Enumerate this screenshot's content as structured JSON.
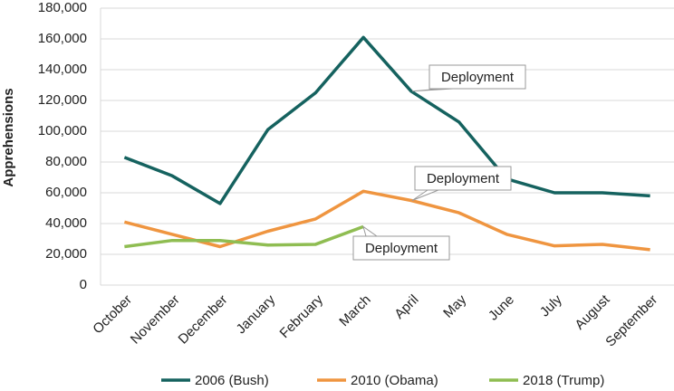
{
  "chart_data": {
    "type": "line",
    "y_label": "Apprehensions",
    "categories": [
      "October",
      "November",
      "December",
      "January",
      "February",
      "March",
      "April",
      "May",
      "June",
      "July",
      "August",
      "September"
    ],
    "series": [
      {
        "name": "2006 (Bush)",
        "color": "#15625f",
        "values": [
          83000,
          71000,
          53000,
          101000,
          125000,
          161000,
          126000,
          106000,
          69000,
          60000,
          60000,
          58000
        ]
      },
      {
        "name": "2010 (Obama)",
        "color": "#ef9540",
        "values": [
          41000,
          33000,
          25000,
          35000,
          43000,
          61000,
          55000,
          47000,
          33000,
          25500,
          26500,
          23000
        ]
      },
      {
        "name": "2018 (Trump)",
        "color": "#8fbd52",
        "values": [
          25000,
          29000,
          29000,
          26000,
          26500,
          38000,
          null,
          null,
          null,
          null,
          null,
          null
        ]
      }
    ],
    "ylim": [
      0,
      180000
    ],
    "yticks": [
      0,
      {
        "value": 20000,
        "label": "20,000"
      },
      {
        "value": 40000,
        "label": "40,000"
      },
      {
        "value": 60000,
        "label": "60,000"
      },
      {
        "value": 80000,
        "label": "80,000"
      },
      {
        "value": 100000,
        "label": "100,000"
      },
      {
        "value": 120000,
        "label": "120,000"
      },
      {
        "value": 140000,
        "label": "140,000"
      },
      {
        "value": 160000,
        "label": "160,000"
      },
      {
        "value": 180000,
        "label": "180,000"
      }
    ],
    "grid": true,
    "annotations": [
      "Deployment",
      "Deployment",
      "Deployment"
    ]
  }
}
